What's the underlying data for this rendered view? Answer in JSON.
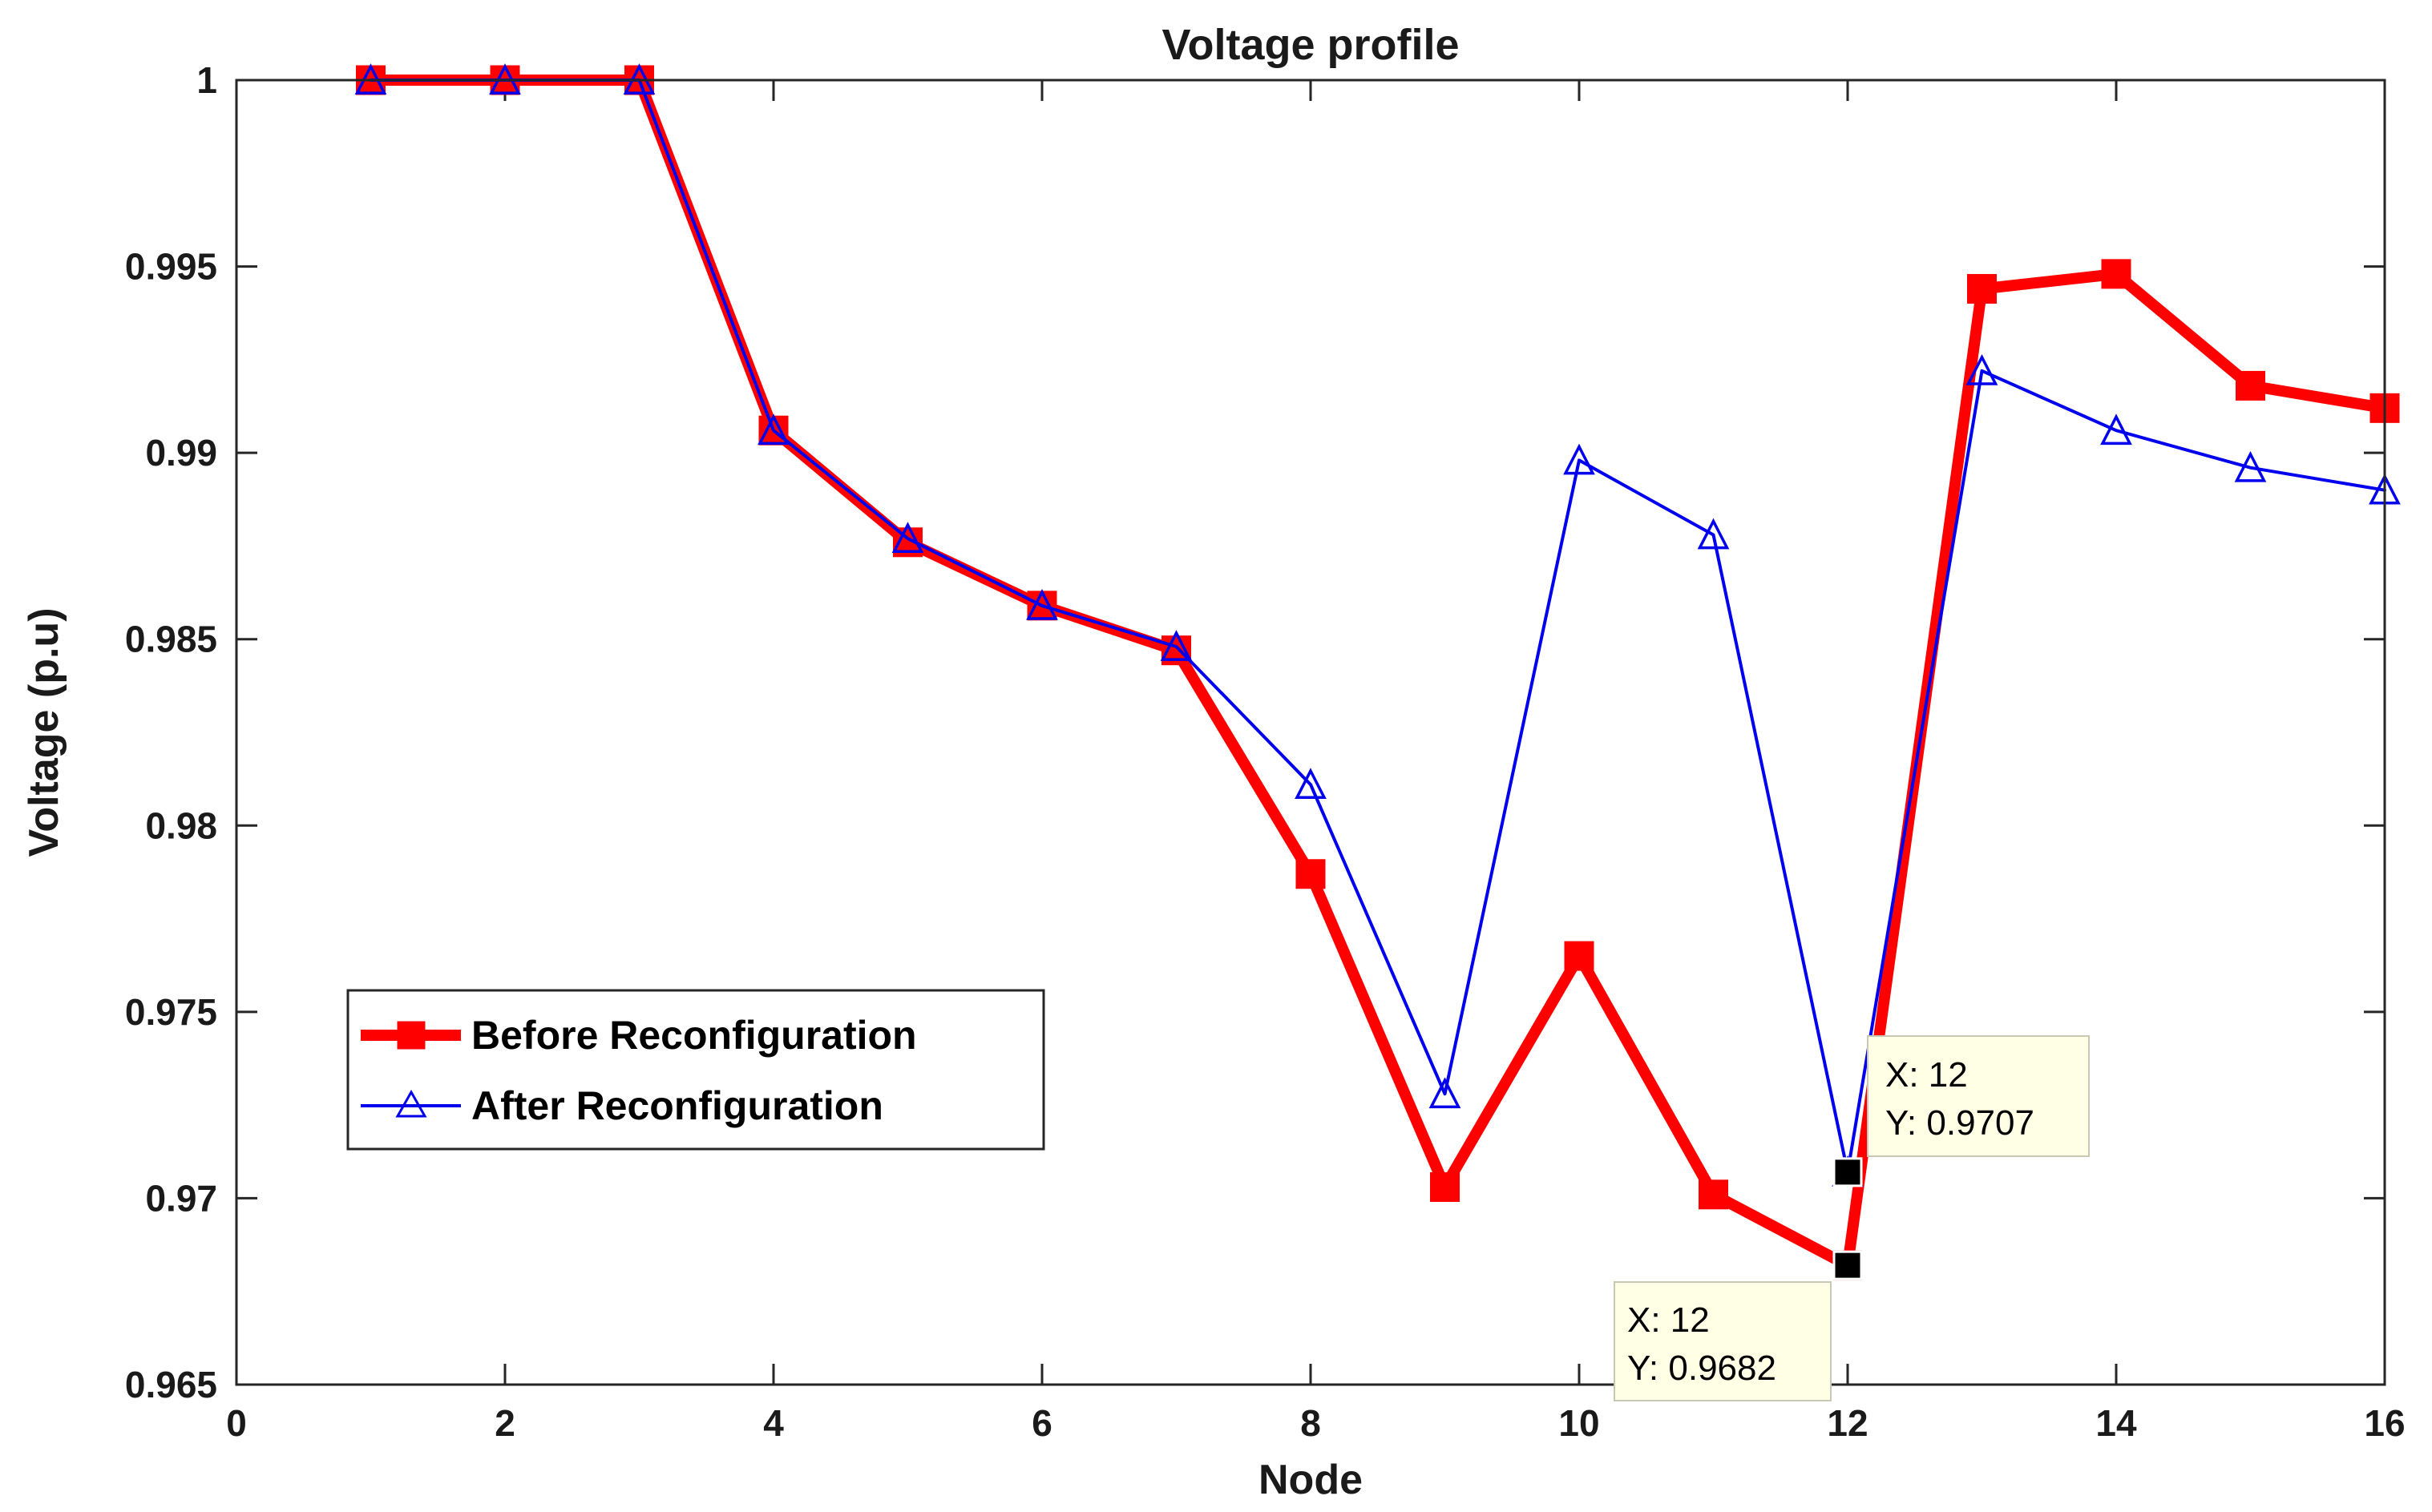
{
  "chart_data": {
    "type": "line",
    "title": "Voltage profile",
    "xlabel": "Node",
    "ylabel": "Voltage (p.u)",
    "xlim": [
      0,
      16
    ],
    "ylim": [
      0.965,
      1.0
    ],
    "xticks": [
      0,
      2,
      4,
      6,
      8,
      10,
      12,
      14,
      16
    ],
    "xtick_labels": [
      "0",
      "2",
      "4",
      "6",
      "8",
      "10",
      "12",
      "14",
      "16"
    ],
    "yticks": [
      0.965,
      0.97,
      0.975,
      0.98,
      0.985,
      0.99,
      0.995,
      1.0
    ],
    "ytick_labels": [
      "0.965",
      "0.97",
      "0.975",
      "0.98",
      "0.985",
      "0.99",
      "0.995",
      "1"
    ],
    "legend_position": "middle-left",
    "series": [
      {
        "name": "Before Reconfiguration",
        "color": "#ff0000",
        "marker": "square",
        "x": [
          1,
          2,
          3,
          4,
          5,
          6,
          7,
          8,
          9,
          10,
          11,
          12,
          13,
          14,
          15,
          16
        ],
        "values": [
          1.0,
          1.0,
          1.0,
          0.9906,
          0.9876,
          0.9859,
          0.9847,
          0.9787,
          0.9703,
          0.9765,
          0.9701,
          0.9682,
          0.9944,
          0.9948,
          0.9918,
          0.9912
        ]
      },
      {
        "name": "After Reconfiguration",
        "color": "#0000ee",
        "marker": "triangle",
        "x": [
          1,
          2,
          3,
          4,
          5,
          6,
          7,
          8,
          9,
          10,
          11,
          12,
          13,
          14,
          15,
          16
        ],
        "values": [
          1.0,
          1.0,
          1.0,
          0.9906,
          0.9877,
          0.9859,
          0.9848,
          0.9811,
          0.9728,
          0.9898,
          0.9878,
          0.9707,
          0.9922,
          0.9906,
          0.9896,
          0.989
        ]
      }
    ],
    "annotations": [
      {
        "series": "After Reconfiguration",
        "x": 12,
        "y": 0.9707,
        "x_text": "X: 12",
        "y_text": "Y: 0.9707",
        "placement": "upper-right"
      },
      {
        "series": "Before Reconfiguration",
        "x": 12,
        "y": 0.9682,
        "x_text": "X: 12",
        "y_text": "Y: 0.9682",
        "placement": "lower-left"
      }
    ]
  }
}
